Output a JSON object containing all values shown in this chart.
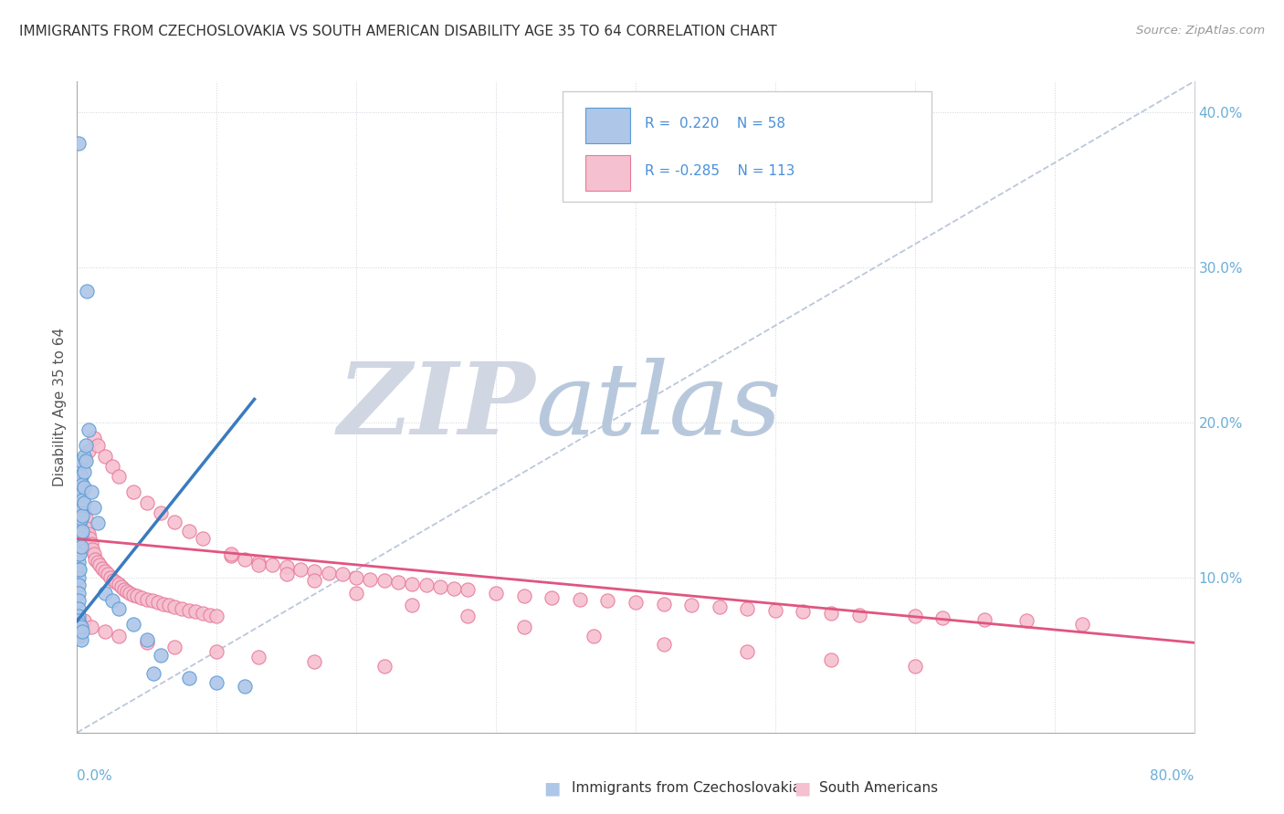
{
  "title": "IMMIGRANTS FROM CZECHOSLOVAKIA VS SOUTH AMERICAN DISABILITY AGE 35 TO 64 CORRELATION CHART",
  "source": "Source: ZipAtlas.com",
  "ylabel": "Disability Age 35 to 64",
  "legend_label_blue": "Immigrants from Czechoslovakia",
  "legend_label_pink": "South Americans",
  "blue_color": "#aec6e8",
  "pink_color": "#f5c0d0",
  "blue_edge_color": "#5b9bd5",
  "pink_edge_color": "#e8799a",
  "blue_line_color": "#3a7bbf",
  "pink_line_color": "#e05580",
  "dashed_line_color": "#b0bdd4",
  "watermark_zip": "ZIP",
  "watermark_atlas": "atlas",
  "watermark_color_zip": "#d0d6e2",
  "watermark_color_atlas": "#b8c8dc",
  "background_color": "#ffffff",
  "xlim": [
    0.0,
    0.8
  ],
  "ylim": [
    0.0,
    0.42
  ],
  "blue_trend_x": [
    0.0,
    0.127
  ],
  "blue_trend_y": [
    0.072,
    0.215
  ],
  "pink_trend_x": [
    0.0,
    0.8
  ],
  "pink_trend_y": [
    0.125,
    0.058
  ],
  "blue_scatter_x": [
    0.001,
    0.001,
    0.001,
    0.001,
    0.001,
    0.001,
    0.001,
    0.001,
    0.001,
    0.001,
    0.002,
    0.002,
    0.002,
    0.002,
    0.002,
    0.002,
    0.002,
    0.002,
    0.002,
    0.003,
    0.003,
    0.003,
    0.003,
    0.003,
    0.003,
    0.003,
    0.004,
    0.004,
    0.004,
    0.004,
    0.005,
    0.005,
    0.005,
    0.005,
    0.006,
    0.006,
    0.007,
    0.008,
    0.01,
    0.012,
    0.015,
    0.001,
    0.001,
    0.002,
    0.002,
    0.003,
    0.003,
    0.004,
    0.055,
    0.08,
    0.1,
    0.12,
    0.02,
    0.025,
    0.03,
    0.04,
    0.05,
    0.06
  ],
  "blue_scatter_y": [
    0.38,
    0.115,
    0.11,
    0.105,
    0.1,
    0.095,
    0.09,
    0.085,
    0.08,
    0.075,
    0.172,
    0.165,
    0.155,
    0.148,
    0.142,
    0.135,
    0.125,
    0.115,
    0.105,
    0.175,
    0.165,
    0.155,
    0.145,
    0.138,
    0.128,
    0.12,
    0.16,
    0.15,
    0.14,
    0.13,
    0.178,
    0.168,
    0.158,
    0.148,
    0.185,
    0.175,
    0.285,
    0.195,
    0.155,
    0.145,
    0.135,
    0.072,
    0.065,
    0.07,
    0.062,
    0.068,
    0.06,
    0.065,
    0.038,
    0.035,
    0.032,
    0.03,
    0.09,
    0.085,
    0.08,
    0.07,
    0.06,
    0.05
  ],
  "pink_scatter_x": [
    0.002,
    0.003,
    0.004,
    0.005,
    0.006,
    0.007,
    0.008,
    0.009,
    0.01,
    0.011,
    0.012,
    0.013,
    0.015,
    0.016,
    0.018,
    0.02,
    0.022,
    0.024,
    0.026,
    0.028,
    0.03,
    0.032,
    0.034,
    0.036,
    0.038,
    0.04,
    0.043,
    0.046,
    0.05,
    0.054,
    0.058,
    0.062,
    0.066,
    0.07,
    0.075,
    0.08,
    0.085,
    0.09,
    0.095,
    0.1,
    0.11,
    0.12,
    0.13,
    0.14,
    0.15,
    0.16,
    0.17,
    0.18,
    0.19,
    0.2,
    0.21,
    0.22,
    0.23,
    0.24,
    0.25,
    0.26,
    0.27,
    0.28,
    0.3,
    0.32,
    0.34,
    0.36,
    0.38,
    0.4,
    0.42,
    0.44,
    0.46,
    0.48,
    0.5,
    0.52,
    0.54,
    0.56,
    0.6,
    0.62,
    0.65,
    0.68,
    0.72,
    0.003,
    0.005,
    0.008,
    0.012,
    0.015,
    0.02,
    0.025,
    0.03,
    0.04,
    0.05,
    0.06,
    0.07,
    0.08,
    0.09,
    0.11,
    0.13,
    0.15,
    0.17,
    0.2,
    0.24,
    0.28,
    0.32,
    0.37,
    0.42,
    0.48,
    0.54,
    0.6,
    0.005,
    0.01,
    0.02,
    0.03,
    0.05,
    0.07,
    0.1,
    0.13,
    0.17,
    0.22
  ],
  "pink_scatter_y": [
    0.165,
    0.155,
    0.148,
    0.142,
    0.138,
    0.132,
    0.128,
    0.125,
    0.122,
    0.118,
    0.115,
    0.112,
    0.11,
    0.108,
    0.106,
    0.104,
    0.102,
    0.1,
    0.098,
    0.097,
    0.096,
    0.094,
    0.092,
    0.091,
    0.09,
    0.089,
    0.088,
    0.087,
    0.086,
    0.085,
    0.084,
    0.083,
    0.082,
    0.081,
    0.08,
    0.079,
    0.078,
    0.077,
    0.076,
    0.075,
    0.114,
    0.112,
    0.11,
    0.108,
    0.107,
    0.105,
    0.104,
    0.103,
    0.102,
    0.1,
    0.099,
    0.098,
    0.097,
    0.096,
    0.095,
    0.094,
    0.093,
    0.092,
    0.09,
    0.088,
    0.087,
    0.086,
    0.085,
    0.084,
    0.083,
    0.082,
    0.081,
    0.08,
    0.079,
    0.078,
    0.077,
    0.076,
    0.075,
    0.074,
    0.073,
    0.072,
    0.07,
    0.17,
    0.175,
    0.182,
    0.19,
    0.185,
    0.178,
    0.172,
    0.165,
    0.155,
    0.148,
    0.142,
    0.136,
    0.13,
    0.125,
    0.115,
    0.108,
    0.102,
    0.098,
    0.09,
    0.082,
    0.075,
    0.068,
    0.062,
    0.057,
    0.052,
    0.047,
    0.043,
    0.072,
    0.068,
    0.065,
    0.062,
    0.058,
    0.055,
    0.052,
    0.049,
    0.046,
    0.043
  ]
}
